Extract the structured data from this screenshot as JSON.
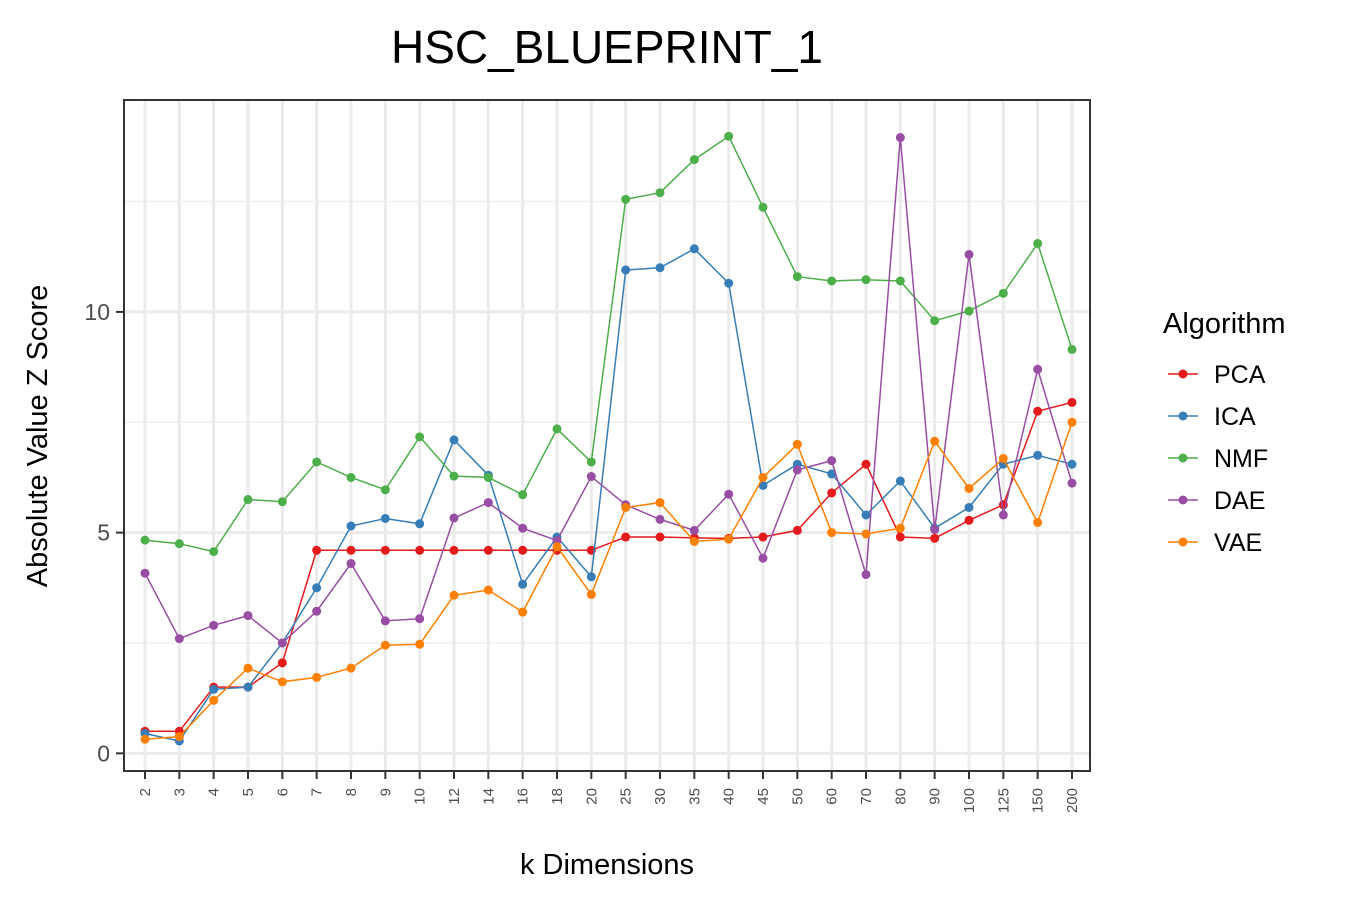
{
  "chart_data": {
    "type": "line",
    "title": "HSC_BLUEPRINT_1",
    "xlabel": "k Dimensions",
    "ylabel": "Absolute Value Z Score",
    "categories": [
      "2",
      "3",
      "4",
      "5",
      "6",
      "7",
      "8",
      "9",
      "10",
      "12",
      "14",
      "16",
      "18",
      "20",
      "25",
      "30",
      "35",
      "40",
      "45",
      "50",
      "60",
      "70",
      "80",
      "90",
      "100",
      "125",
      "150",
      "200"
    ],
    "yticks": [
      0,
      5,
      10
    ],
    "ytick_labels": [
      "0",
      "5",
      "10"
    ],
    "ylim": [
      -0.4,
      14.8
    ],
    "grid": true,
    "legend": {
      "title": "Algorithm",
      "position": "right"
    },
    "series": [
      {
        "name": "PCA",
        "color": "#e41a1c",
        "values": [
          0.5,
          0.5,
          1.5,
          1.5,
          2.05,
          4.6,
          4.6,
          4.6,
          4.6,
          4.6,
          4.6,
          4.6,
          4.6,
          4.6,
          4.9,
          4.9,
          4.88,
          4.87,
          4.9,
          5.05,
          5.9,
          6.55,
          4.9,
          4.87,
          5.28,
          5.63,
          7.75,
          7.95
        ]
      },
      {
        "name": "ICA",
        "color": "#377eb8",
        "values": [
          0.45,
          0.28,
          1.45,
          1.5,
          2.5,
          3.75,
          5.15,
          5.32,
          5.2,
          7.1,
          6.3,
          3.83,
          4.9,
          4.0,
          10.95,
          11.0,
          11.43,
          10.65,
          6.07,
          6.55,
          6.33,
          5.4,
          6.17,
          5.1,
          5.57,
          6.55,
          6.75,
          6.55
        ]
      },
      {
        "name": "NMF",
        "color": "#4daf4a",
        "values": [
          4.83,
          4.75,
          4.57,
          5.75,
          5.7,
          6.6,
          6.25,
          5.97,
          7.17,
          6.28,
          6.25,
          5.86,
          7.35,
          6.6,
          12.55,
          12.7,
          13.45,
          13.98,
          12.37,
          10.8,
          10.7,
          10.73,
          10.7,
          9.8,
          10.02,
          10.42,
          11.55,
          9.15
        ]
      },
      {
        "name": "DAE",
        "color": "#984ea3",
        "values": [
          4.08,
          2.6,
          2.9,
          3.12,
          2.5,
          3.22,
          4.3,
          3.0,
          3.05,
          5.33,
          5.68,
          5.1,
          4.82,
          6.27,
          5.63,
          5.3,
          5.05,
          5.87,
          4.42,
          6.42,
          6.63,
          4.05,
          13.95,
          5.07,
          11.3,
          5.4,
          8.7,
          6.12
        ]
      },
      {
        "name": "VAE",
        "color": "#ff7f00",
        "values": [
          0.32,
          0.38,
          1.2,
          1.93,
          1.62,
          1.72,
          1.93,
          2.45,
          2.47,
          3.58,
          3.7,
          3.2,
          4.68,
          3.6,
          5.57,
          5.68,
          4.8,
          4.85,
          6.25,
          7.0,
          5.0,
          4.97,
          5.1,
          7.07,
          6.0,
          6.68,
          5.23,
          7.5
        ]
      }
    ]
  }
}
